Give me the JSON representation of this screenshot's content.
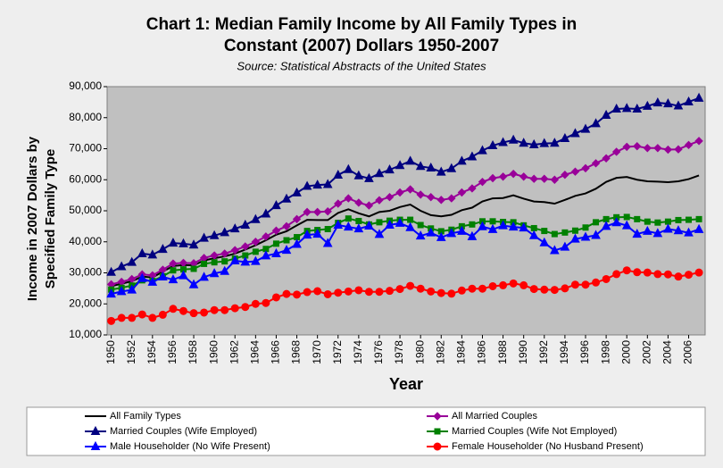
{
  "chart_data": {
    "type": "line",
    "title": [
      "Chart 1: Median Family Income by All Family Types in",
      "Constant (2007) Dollars 1950-2007"
    ],
    "subtitle": "Source: Statistical Abstracts of the United States",
    "ylabel": [
      "Income in 2007 Dollars by",
      "Specified Family Type"
    ],
    "xlabel": "Year",
    "x": [
      1950,
      1951,
      1952,
      1953,
      1954,
      1955,
      1956,
      1957,
      1958,
      1959,
      1960,
      1961,
      1962,
      1963,
      1964,
      1965,
      1966,
      1967,
      1968,
      1969,
      1970,
      1971,
      1972,
      1973,
      1974,
      1975,
      1976,
      1977,
      1978,
      1979,
      1980,
      1981,
      1982,
      1983,
      1984,
      1985,
      1986,
      1987,
      1988,
      1989,
      1990,
      1991,
      1992,
      1993,
      1994,
      1995,
      1996,
      1997,
      1998,
      1999,
      2000,
      2001,
      2002,
      2003,
      2004,
      2005,
      2006,
      2007
    ],
    "xlim": [
      1949.6,
      2007.6
    ],
    "xticks": [
      1950,
      1952,
      1954,
      1956,
      1958,
      1960,
      1962,
      1964,
      1966,
      1968,
      1970,
      1972,
      1974,
      1976,
      1978,
      1980,
      1982,
      1984,
      1986,
      1988,
      1990,
      1992,
      1994,
      1996,
      1998,
      2000,
      2002,
      2004,
      2006
    ],
    "ylim": [
      10000,
      90000
    ],
    "yticks": [
      {
        "value": 10000,
        "label": "10,000"
      },
      {
        "value": 20000,
        "label": "20,000"
      },
      {
        "value": 30000,
        "label": "30,000"
      },
      {
        "value": 40000,
        "label": "40,000"
      },
      {
        "value": 50000,
        "label": "50,000"
      },
      {
        "value": 60000,
        "label": "60,000"
      },
      {
        "value": 70000,
        "label": "70,000"
      },
      {
        "value": 80000,
        "label": "80,000"
      },
      {
        "value": 90000,
        "label": "90,000"
      }
    ],
    "series": [
      {
        "name": "All Family Types",
        "color": "#000000",
        "marker": "none",
        "values": [
          25700,
          26500,
          27300,
          28800,
          28500,
          30400,
          32200,
          32500,
          32400,
          34000,
          34700,
          35300,
          36200,
          37500,
          38900,
          40500,
          42300,
          43400,
          45300,
          47100,
          47000,
          47000,
          49300,
          50500,
          49200,
          48200,
          49600,
          50000,
          51200,
          52000,
          50000,
          48600,
          48200,
          48700,
          50200,
          51000,
          53000,
          54000,
          54100,
          55000,
          53900,
          53000,
          52800,
          52300,
          53500,
          54800,
          55600,
          57100,
          59300,
          60600,
          60900,
          60000,
          59500,
          59400,
          59200,
          59500,
          60200,
          61400
        ]
      },
      {
        "name": "All Married Couples",
        "color": "#990099",
        "marker": "diamond",
        "values": [
          26300,
          27100,
          28000,
          29500,
          29200,
          31000,
          33000,
          33200,
          33100,
          34800,
          35600,
          36200,
          37300,
          38500,
          40000,
          41700,
          43600,
          45000,
          47300,
          49600,
          49600,
          49800,
          52300,
          54000,
          52600,
          51700,
          53400,
          54400,
          55900,
          56900,
          55200,
          54400,
          53500,
          54000,
          55900,
          57200,
          59300,
          60500,
          61000,
          61900,
          61000,
          60300,
          60300,
          60000,
          61600,
          62600,
          63700,
          65300,
          66900,
          69000,
          70600,
          70800,
          70200,
          70200,
          69700,
          69800,
          71200,
          72500
        ]
      },
      {
        "name": "Married Couples (Wife Employed)",
        "color": "#000080",
        "marker": "triangle",
        "values": [
          30200,
          32000,
          33400,
          36200,
          35800,
          37600,
          39600,
          39400,
          39000,
          41200,
          42000,
          43000,
          44200,
          45400,
          47200,
          49000,
          51700,
          53800,
          55800,
          57900,
          58300,
          58500,
          61500,
          63300,
          61300,
          60400,
          62000,
          63200,
          64600,
          66000,
          64300,
          63800,
          62500,
          63600,
          66000,
          67400,
          69400,
          71000,
          72000,
          72800,
          71800,
          71300,
          71700,
          71800,
          73300,
          74900,
          76300,
          78100,
          80800,
          82800,
          83000,
          82800,
          83700,
          84800,
          84500,
          83800,
          85100,
          86300
        ]
      },
      {
        "name": "Married Couples (Wife Not Employed)",
        "color": "#008000",
        "marker": "square",
        "values": [
          24600,
          25200,
          25900,
          27600,
          27400,
          28900,
          30800,
          31100,
          31300,
          32900,
          33400,
          33700,
          34600,
          35600,
          36800,
          37700,
          39400,
          40500,
          41500,
          43500,
          43800,
          44100,
          46100,
          47500,
          46700,
          45600,
          46300,
          46800,
          47100,
          47100,
          45400,
          44300,
          43400,
          43900,
          45000,
          45600,
          46600,
          46600,
          46400,
          46300,
          45300,
          44400,
          43500,
          42500,
          43000,
          43600,
          44600,
          46300,
          47300,
          47900,
          48000,
          47300,
          46500,
          46200,
          46500,
          47000,
          47100,
          47300
        ]
      },
      {
        "name": "Male Householder (No Wife Present)",
        "color": "#0000ff",
        "marker": "triangle",
        "values": [
          23200,
          24000,
          24500,
          28200,
          27000,
          28700,
          27800,
          29100,
          26200,
          28600,
          29800,
          30500,
          33900,
          33500,
          33700,
          35500,
          36200,
          37300,
          39200,
          42200,
          42500,
          39500,
          45400,
          44800,
          44200,
          45100,
          42400,
          45400,
          46000,
          44600,
          41900,
          42900,
          41400,
          42700,
          43400,
          41700,
          44900,
          44000,
          45200,
          44800,
          44500,
          42000,
          39700,
          37200,
          38300,
          40900,
          41500,
          42100,
          45000,
          46200,
          45200,
          42500,
          43400,
          42700,
          44100,
          43600,
          42900,
          44000
        ]
      },
      {
        "name": "Female Householder (No Husband Present)",
        "color": "#ff0000",
        "marker": "circle",
        "values": [
          14500,
          15500,
          15500,
          16600,
          15500,
          16500,
          18400,
          17700,
          17000,
          17200,
          18000,
          18000,
          18600,
          19000,
          20000,
          20300,
          22100,
          23200,
          23000,
          23800,
          24100,
          23100,
          23600,
          24000,
          24400,
          23900,
          23900,
          24200,
          24800,
          25800,
          24900,
          24000,
          23500,
          23300,
          24300,
          24900,
          24900,
          25700,
          26000,
          26600,
          26000,
          24800,
          24600,
          24500,
          25000,
          26200,
          26200,
          26900,
          28000,
          29600,
          30800,
          30200,
          30100,
          29600,
          29500,
          28800,
          29400,
          30100
        ]
      }
    ]
  }
}
